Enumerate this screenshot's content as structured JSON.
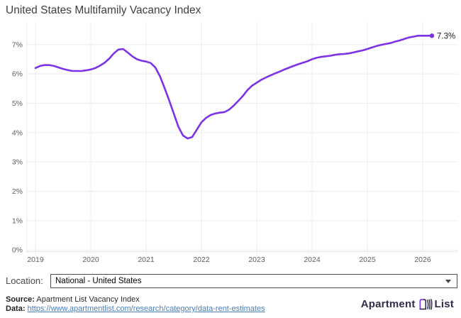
{
  "title": "United States Multifamily Vacancy Index",
  "colors": {
    "line": "#7d32e7",
    "grid": "#ececec",
    "axis_text": "#606060",
    "link": "#4a7eba",
    "logo_navy": "#322c4a",
    "logo_purple": "#7d32e7"
  },
  "chart_data": {
    "type": "line",
    "title": "United States Multifamily Vacancy Index",
    "x_unit": "month",
    "x_start": "2019-01",
    "x_end": "2026-03",
    "x_tick_labels": [
      "2019",
      "2020",
      "2021",
      "2022",
      "2023",
      "2024",
      "2025",
      "2026"
    ],
    "y_tick_labels": [
      "0%",
      "1%",
      "2%",
      "3%",
      "4%",
      "5%",
      "6%",
      "7%"
    ],
    "ylim": [
      0,
      7.7
    ],
    "grid": true,
    "legend": "none",
    "end_label": "7.3%",
    "series": [
      {
        "name": "National - United States",
        "values": [
          6.2,
          6.27,
          6.3,
          6.3,
          6.27,
          6.22,
          6.17,
          6.13,
          6.1,
          6.1,
          6.1,
          6.12,
          6.15,
          6.2,
          6.28,
          6.38,
          6.52,
          6.7,
          6.83,
          6.85,
          6.73,
          6.6,
          6.5,
          6.45,
          6.42,
          6.37,
          6.22,
          5.92,
          5.52,
          5.1,
          4.65,
          4.2,
          3.9,
          3.8,
          3.85,
          4.1,
          4.35,
          4.5,
          4.6,
          4.65,
          4.68,
          4.7,
          4.78,
          4.92,
          5.08,
          5.25,
          5.45,
          5.6,
          5.7,
          5.8,
          5.88,
          5.95,
          6.02,
          6.08,
          6.15,
          6.21,
          6.27,
          6.33,
          6.38,
          6.43,
          6.5,
          6.55,
          6.58,
          6.6,
          6.62,
          6.65,
          6.67,
          6.68,
          6.7,
          6.73,
          6.77,
          6.8,
          6.85,
          6.9,
          6.95,
          6.99,
          7.02,
          7.05,
          7.1,
          7.14,
          7.19,
          7.24,
          7.27,
          7.3,
          7.3,
          7.3,
          7.3
        ]
      }
    ]
  },
  "location": {
    "label": "Location:",
    "selected": "National - United States"
  },
  "footer": {
    "source_label": "Source:",
    "source_text": " Apartment List Vacancy Index",
    "data_label": "Data:",
    "data_url": "https://www.apartmentlist.com/research/category/data-rent-estimates"
  },
  "logo": {
    "word1": "Apartment",
    "word2": "List"
  }
}
